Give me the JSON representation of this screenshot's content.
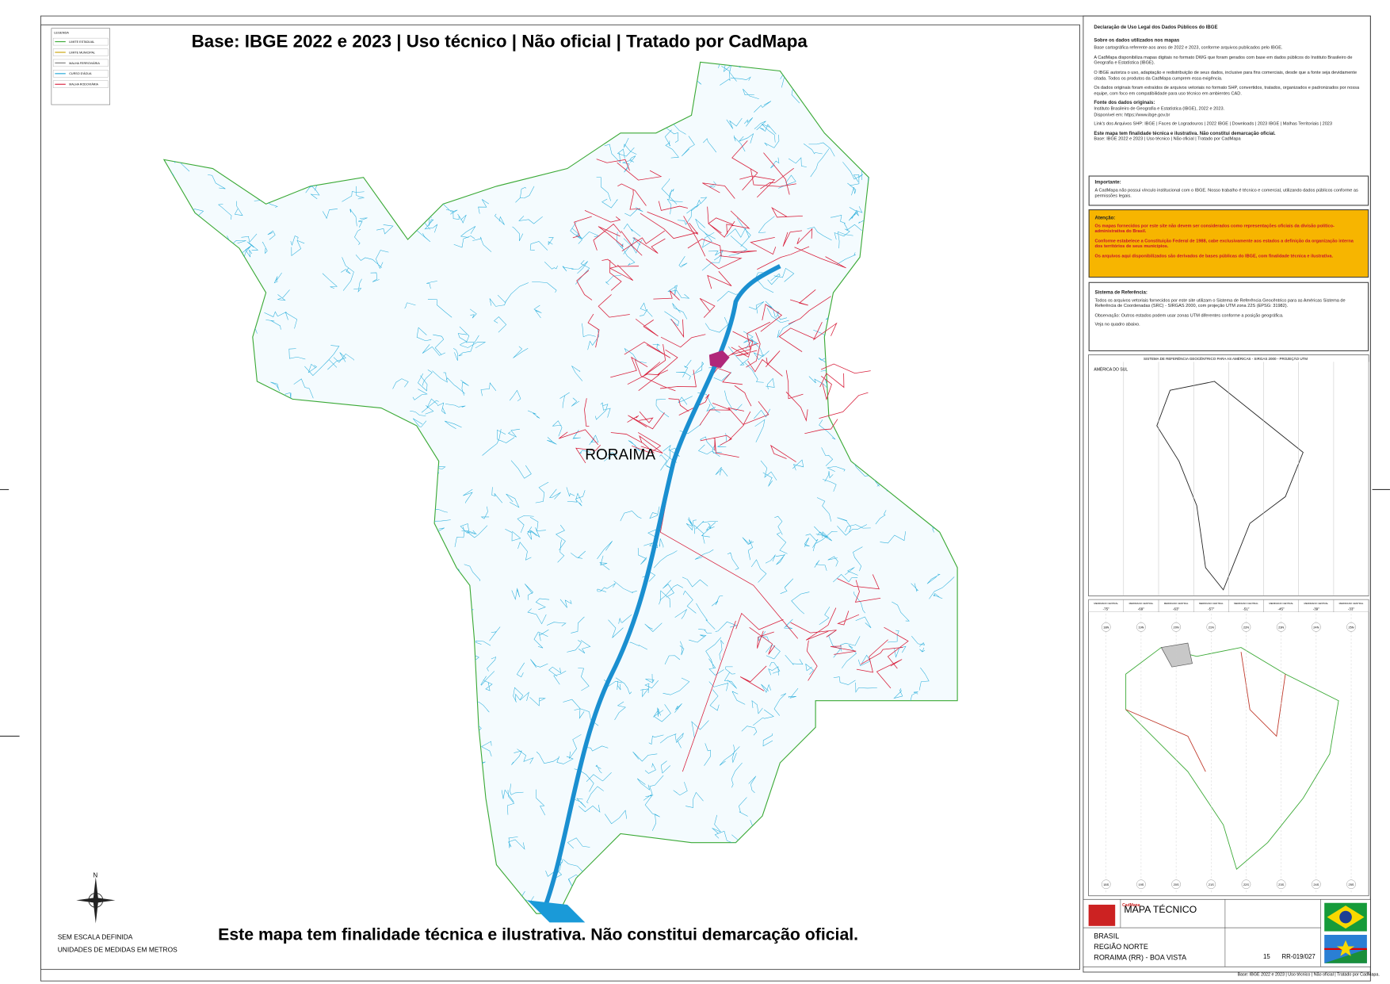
{
  "header": {
    "title": "Base: IBGE 2022 e 2023 | Uso técnico | Não oficial | Tratado por CadMapa"
  },
  "legend": {
    "title": "LEGENDA",
    "items": [
      {
        "label": "LIMITE ESTADUAL",
        "color": "#3aa935"
      },
      {
        "label": "LIMITE MUNICIPAL",
        "color": "#c8a000"
      },
      {
        "label": "MALHA FERROVIÁRIA",
        "color": "#7a7a7a"
      },
      {
        "label": "CURSO D'ÁGUA",
        "color": "#1aa3d6"
      },
      {
        "label": "MALHA RODOVIÁRIA",
        "color": "#d8203c"
      }
    ]
  },
  "map": {
    "label": "RORAIMA",
    "north": "N",
    "scale_notes": [
      "SEM ESCALA DEFINIDA",
      "UNIDADES DE MEDIDAS EM METROS"
    ]
  },
  "footer": {
    "disclaimer": "Este mapa tem finalidade técnica e ilustrativa. Não constitui demarcação oficial.",
    "credit": "Base: IBGE 2022 e 2023 | Uso técnico | Não oficial | Tratado por CadMapa."
  },
  "declaration": {
    "title": "Declaração de Uso Legal dos Dados Públicos do IBGE",
    "subtitle": "Sobre os dados utilizados nos mapas",
    "paragraphs": [
      "Base cartográfica referente aos anos de 2022 e 2023, conforme arquivos publicados pelo IBGE.",
      "A CadMapa disponibiliza mapas digitais no formato DWG que foram gerados com base em dados públicos do Instituto Brasileiro de Geografia e Estatística (IBGE).",
      "O IBGE autoriza o uso, adaptação e redistribuição de seus dados, inclusive para fins comerciais, desde que a fonte seja devidamente citada. Todos os produtos da CadMapa cumprem essa exigência.",
      "Os dados originais foram extraídos de arquivos vetoriais no formato SHP, convertidos, tratados, organizados e padronizados por nossa equipe, com foco em compatibilidade para uso técnico em ambientes CAD."
    ],
    "source_title": "Fonte dos dados originais:",
    "source": "Instituto Brasileiro de Geografia e Estatística (IBGE), 2022 e 2023.",
    "available": "Disponível em: https://www.ibge.gov.br",
    "links": "Link's dos Arquivos SHP: IBGE | Faces de Logradouros | 2022   IBGE | Downloads | 2023   IBGE | Malhas Territoriais | 2023",
    "note": "Este mapa tem finalidade técnica e ilustrativa. Não constitui demarcação oficial.",
    "base": "Base: IBGE 2022 e 2023 | Uso técnico | Não oficial | Tratado por CadMapa"
  },
  "important": {
    "title": "Importante:",
    "text": "A CadMapa não possui vínculo institucional com o IBGE. Nosso trabalho é técnico e comercial, utilizando dados públicos conforme as permissões legais."
  },
  "attention": {
    "title": "Atenção:",
    "paragraphs": [
      "Os mapas fornecidos por este site não devem ser considerados como representações oficiais da divisão político-administrativa do Brasil.",
      "Conforme estabelece a Constituição Federal de 1988, cabe exclusivamente aos estados a definição da organização interna dos territórios de seus municípios.",
      "Os arquivos aqui disponibilizados são derivados de bases públicas do IBGE, com finalidade técnica e ilustrativa."
    ]
  },
  "reference": {
    "title": "Sistema de Referência:",
    "paragraphs": [
      "Todos os arquivos vetoriais fornecidos por este site utilizam o Sistema de Referência Geocêntrico para as Américas Sistema de Referência de Coordenadas (SRC) - SIRGAS 2000, com projeção UTM zona 22S (EPSG: 31982).",
      "Observação: Outros estados podem usar zonas UTM diferentes conforme a posição geográfica.",
      "Veja no quadro abaixo."
    ]
  },
  "inset": {
    "title": "SISTEMA DE REFERÊNCIA GEOCÊNTRICO PARA AS AMÉRICAS - SIRGAS 2000 - PROJEÇÃO UTM",
    "continent": "AMÉRICA DO SUL",
    "meridian_label": "MERIDIANO CENTRAL",
    "meridians": [
      "-75°",
      "-69°",
      "-63°",
      "-57°",
      "-51°",
      "-45°",
      "-39°",
      "-33°"
    ],
    "zones_north": [
      "18N",
      "19N",
      "20N",
      "21N",
      "22N",
      "23N",
      "24N",
      "25N"
    ],
    "zones_south": [
      "18S",
      "19S",
      "20S",
      "21S",
      "22S",
      "23S",
      "24S",
      "25S"
    ]
  },
  "title_block": {
    "logo": "CadMapa",
    "heading": "MAPA TÉCNICO",
    "lines": [
      "BRASIL",
      "REGIÃO NORTE",
      "RORAIMA (RR) - BOA VISTA"
    ],
    "sheet": "15",
    "code": "RR-019/027"
  }
}
